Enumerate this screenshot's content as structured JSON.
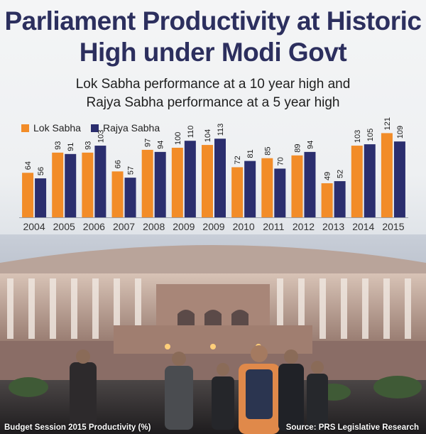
{
  "header": {
    "title_line1": "Parliament Productivity at Historic",
    "title_line2": "High under Modi Govt",
    "subtitle_line1": "Lok Sabha performance at a 10 year high and",
    "subtitle_line2": "Rajya Sabha performance at a 5 year high"
  },
  "footer": {
    "left": "Budget Session 2015 Productivity (%)",
    "right": "Source: PRS Legislative Research"
  },
  "colors": {
    "lok_sabha": "#f28c28",
    "rajya_sabha": "#2b2e6e",
    "title": "#2c2f5e"
  },
  "chart_data": {
    "type": "bar",
    "title": "Budget Session 2015 Productivity (%)",
    "categories": [
      "2004",
      "2005",
      "2006",
      "2007",
      "2008",
      "2009",
      "2009",
      "2010",
      "2011",
      "2012",
      "2013",
      "2014",
      "2015"
    ],
    "series": [
      {
        "name": "Lok Sabha",
        "values": [
          64,
          93,
          93,
          66,
          97,
          100,
          104,
          72,
          85,
          89,
          49,
          103,
          121
        ]
      },
      {
        "name": "Rajya Sabha",
        "values": [
          56,
          91,
          103,
          57,
          94,
          110,
          113,
          81,
          70,
          94,
          52,
          105,
          109
        ]
      }
    ],
    "ylim": [
      0,
      125
    ],
    "grid": false,
    "legend": "top-left"
  }
}
